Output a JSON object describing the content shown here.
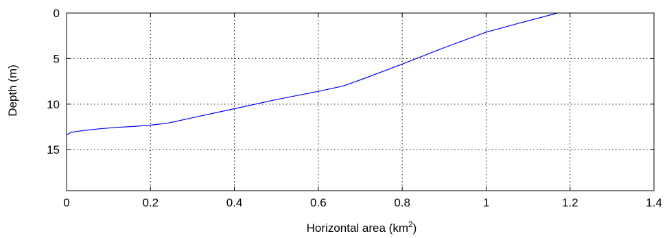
{
  "chart_data": {
    "type": "line",
    "title": "",
    "xlabel": "Horizontal area (km",
    "xlabel_superscript": "2",
    "xlabel_suffix": ")",
    "ylabel": "Depth (m)",
    "xlim": [
      0,
      1.4
    ],
    "ylim": [
      0,
      19.5
    ],
    "y_reversed": true,
    "grid": true,
    "legend": "none",
    "x_ticks": [
      0,
      0.2,
      0.4,
      0.6,
      0.8,
      1,
      1.2,
      1.4
    ],
    "x_tick_labels": [
      "0",
      "0.2",
      "0.4",
      "0.6",
      "0.8",
      "1",
      "1.2",
      "1.4"
    ],
    "y_ticks": [
      0,
      5,
      10,
      15
    ],
    "y_tick_labels": [
      "0",
      "5",
      "10",
      "15"
    ],
    "series": [
      {
        "color": "#0000ff",
        "x": [
          0.0,
          0.01,
          0.04,
          0.08,
          0.12,
          0.16,
          0.2,
          0.24,
          0.3,
          0.4,
          0.5,
          0.6,
          0.66,
          0.72,
          0.8,
          0.9,
          1.0,
          1.08,
          1.17
        ],
        "y": [
          13.4,
          13.1,
          12.9,
          12.7,
          12.55,
          12.45,
          12.3,
          12.1,
          11.5,
          10.5,
          9.5,
          8.6,
          8.0,
          7.0,
          5.6,
          3.8,
          2.1,
          1.1,
          0.0
        ]
      }
    ]
  },
  "colors": {
    "axis": "#000000",
    "grid": "#000000",
    "background": "#ffffff"
  }
}
